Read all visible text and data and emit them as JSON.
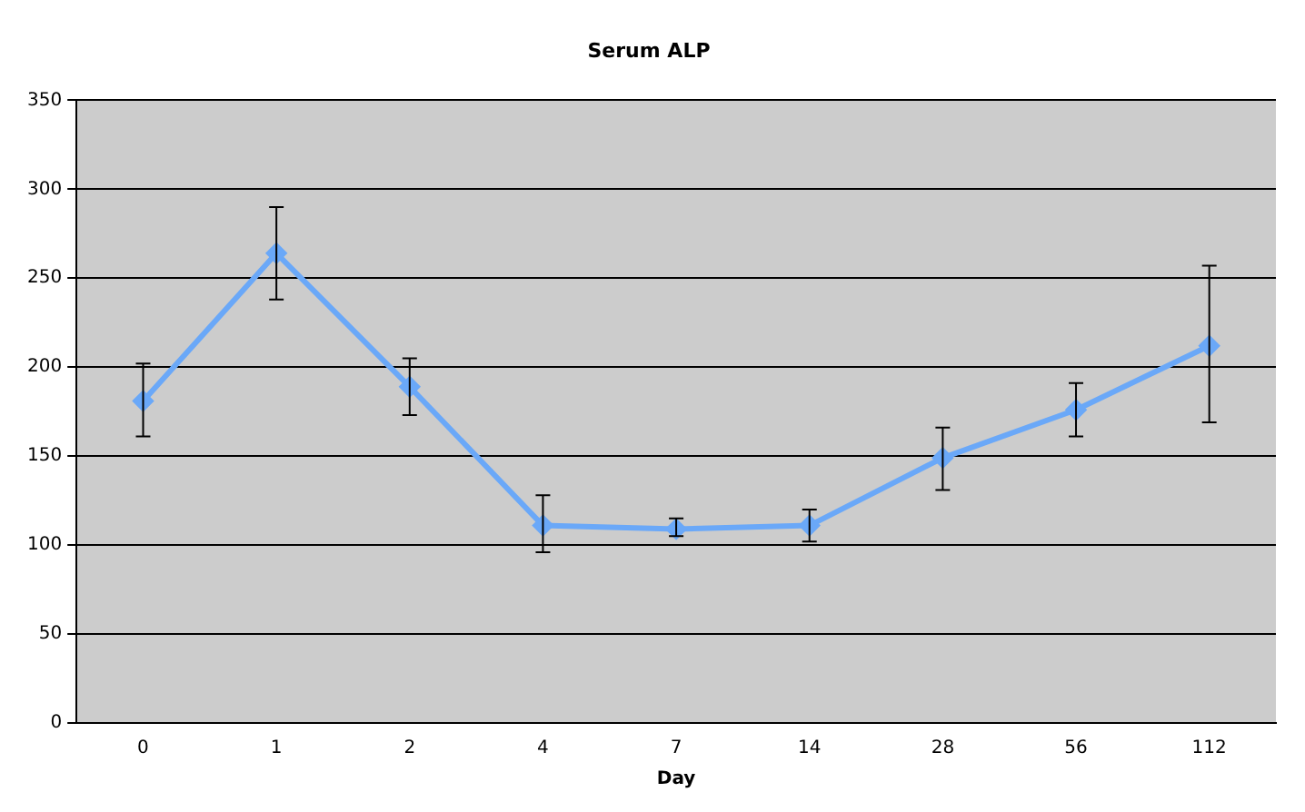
{
  "chart_data": {
    "type": "line",
    "title": "Serum ALP",
    "xlabel": "Day",
    "categories": [
      "0",
      "1",
      "2",
      "4",
      "7",
      "14",
      "28",
      "56",
      "112"
    ],
    "series": [
      {
        "color": "#6aa8f8",
        "values": [
          181,
          264,
          189,
          111,
          109,
          111,
          149,
          176,
          212
        ],
        "errors": [
          [
            161,
            202
          ],
          [
            238,
            290
          ],
          [
            173,
            205
          ],
          [
            96,
            128
          ],
          [
            105,
            115
          ],
          [
            102,
            120
          ],
          [
            131,
            166
          ],
          [
            161,
            191
          ],
          [
            169,
            257
          ]
        ]
      }
    ],
    "ylim": [
      0,
      350
    ],
    "yticks": [
      0,
      50,
      100,
      150,
      200,
      250,
      300,
      350
    ],
    "grid": "y",
    "legend": false,
    "marker": "diamond",
    "line_style": "solid"
  }
}
